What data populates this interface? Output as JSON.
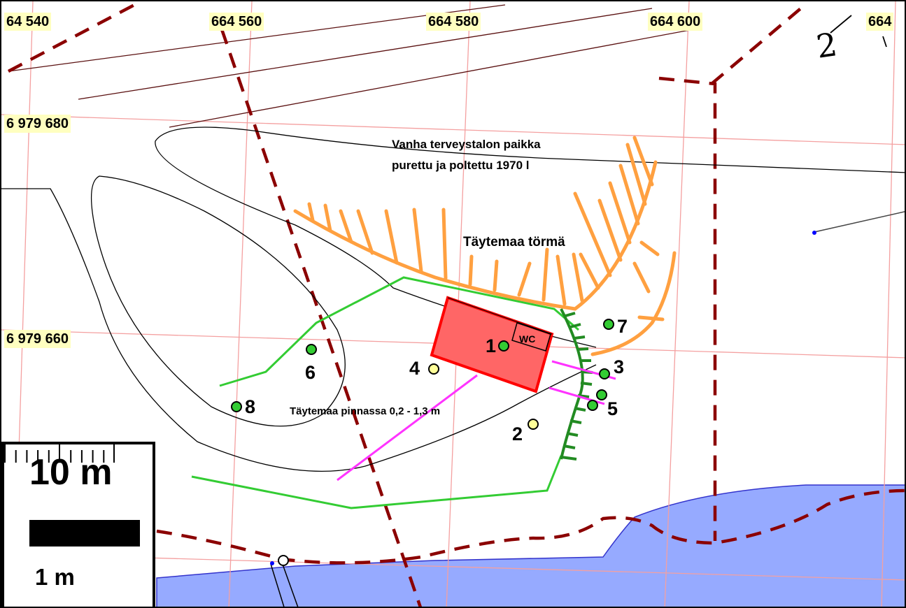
{
  "map": {
    "grid_labels_x": [
      "64 540",
      "664 560",
      "664 580",
      "664 600",
      "664"
    ],
    "grid_labels_y": [
      "6 979 680",
      "6 979 660"
    ],
    "annotations": {
      "old_site_line1": "Vanha terveystalon paikka",
      "old_site_line2": "purettu ja poltettu 1970 l",
      "fill_slope": "Täytemaa törmä",
      "fill_surface": "Täytemaa pinnassa 0,2 - 1,3 m",
      "wc": "WC",
      "handwritten": "2"
    },
    "points": [
      {
        "label": "1",
        "color": "#33cc33"
      },
      {
        "label": "2",
        "color": "#ffff99"
      },
      {
        "label": "3",
        "color": "#33cc33"
      },
      {
        "label": "4",
        "color": "#ffff99"
      },
      {
        "label": "5",
        "color": "#33cc33"
      },
      {
        "label": "6",
        "color": "#33cc33"
      },
      {
        "label": "7",
        "color": "#33cc33"
      },
      {
        "label": "8",
        "color": "#33cc33"
      }
    ],
    "scale": {
      "big_label": "10 m",
      "small_label": "1 m"
    },
    "colors": {
      "grid": "#f4a0a0",
      "boundary": "#8b0000",
      "water": "#96aaff",
      "building": "#ff6666",
      "slope": "#ffa040",
      "green_line": "#33cc33",
      "pipe": "#ff33ff"
    }
  }
}
